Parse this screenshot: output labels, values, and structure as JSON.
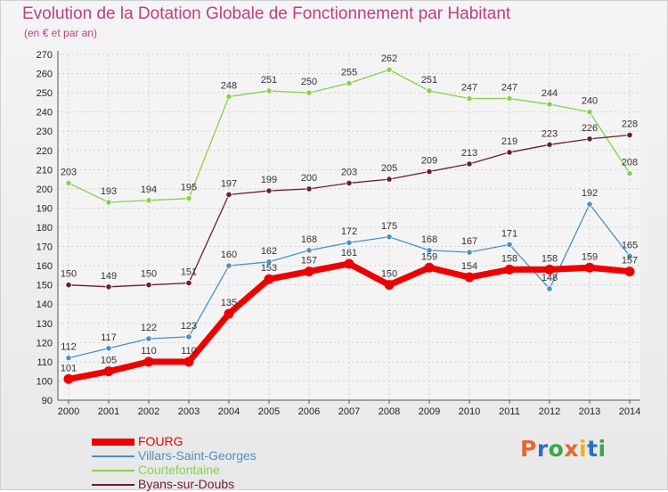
{
  "title": "Evolution de la Dotation Globale de Fonctionnement par Habitant",
  "subtitle": "(en € et par an)",
  "logo": {
    "text": "Proxiti",
    "colors": [
      "#e8672a",
      "#2d6fbf",
      "#3aa745",
      "#e8672a",
      "#f2b21b",
      "#2d6fbf",
      "#3aa745"
    ]
  },
  "chart_data": {
    "type": "line",
    "x": [
      2000,
      2001,
      2002,
      2003,
      2004,
      2005,
      2006,
      2007,
      2008,
      2009,
      2010,
      2011,
      2012,
      2013,
      2014
    ],
    "ylim": [
      90,
      270
    ],
    "yticks": [
      90,
      100,
      110,
      120,
      130,
      140,
      150,
      160,
      170,
      180,
      190,
      200,
      210,
      220,
      230,
      240,
      250,
      260,
      270
    ],
    "grid": true,
    "legend_position": "bottom-left",
    "series": [
      {
        "name": "Courtefontaine",
        "color": "#88d04e",
        "values": [
          203,
          193,
          194,
          195,
          248,
          251,
          250,
          255,
          262,
          251,
          247,
          247,
          244,
          240,
          208
        ]
      },
      {
        "name": "Byans-sur-Doubs",
        "color": "#6b1e2a",
        "values": [
          150,
          149,
          150,
          151,
          197,
          199,
          200,
          203,
          205,
          209,
          213,
          219,
          223,
          226,
          228
        ]
      },
      {
        "name": "Villars-Saint-Georges",
        "color": "#4a90c8",
        "values": [
          112,
          117,
          122,
          123,
          160,
          162,
          168,
          172,
          175,
          168,
          167,
          171,
          148,
          192,
          165
        ]
      },
      {
        "name": "FOURG",
        "color": "#ee0000",
        "values": [
          101,
          105,
          110,
          110,
          135,
          153,
          157,
          161,
          150,
          159,
          154,
          158,
          158,
          159,
          157
        ]
      }
    ],
    "legend": [
      "FOURG",
      "Villars-Saint-Georges",
      "Courtefontaine",
      "Byans-sur-Doubs"
    ]
  }
}
